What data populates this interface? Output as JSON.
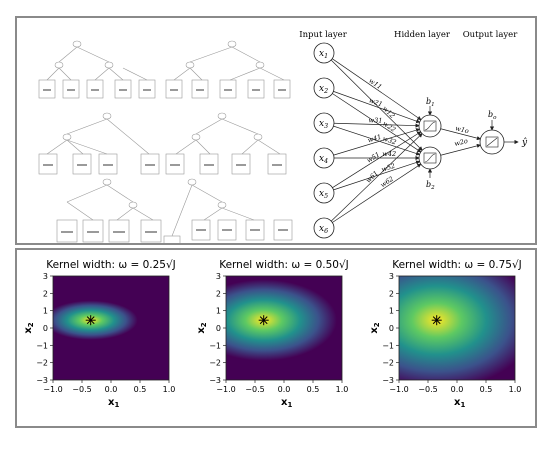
{
  "network": {
    "input_layer_label": "Input layer",
    "hidden_layer_label": "Hidden layer",
    "output_layer_label": "Output layer",
    "inputs": [
      "x1",
      "x2",
      "x3",
      "x4",
      "x5",
      "x6"
    ],
    "weights_h1": [
      "w11",
      "w21",
      "w31",
      "w41",
      "w51",
      "w61"
    ],
    "weights_h2": [
      "w12",
      "w22",
      "w32",
      "w42",
      "w52",
      "w62"
    ],
    "bias_hidden": [
      "b1",
      "b2"
    ],
    "output_weights": [
      "w1o",
      "w2o"
    ],
    "output_bias": "bo",
    "output": "ŷ"
  },
  "heatmaps": [
    {
      "title": "Kernel width: ω = 0.25√J",
      "width_factor": 0.25
    },
    {
      "title": "Kernel width: ω = 0.50√J",
      "width_factor": 0.5
    },
    {
      "title": "Kernel width: ω = 0.75√J",
      "width_factor": 0.75
    }
  ],
  "heatmap_axes": {
    "xlabel": "x1",
    "ylabel": "x2",
    "xticks": [
      "−1.0",
      "−0.5",
      "0.0",
      "0.5",
      "1.0"
    ],
    "yticks": [
      "3",
      "2",
      "1",
      "0",
      "−1",
      "−2",
      "−3"
    ],
    "xlim": [
      -1.0,
      1.0
    ],
    "ylim": [
      -3,
      3
    ],
    "star": {
      "x": -0.35,
      "y": 0.45
    },
    "colormap": [
      "#440154",
      "#3b528b",
      "#21918c",
      "#5ec962",
      "#fde725"
    ]
  }
}
